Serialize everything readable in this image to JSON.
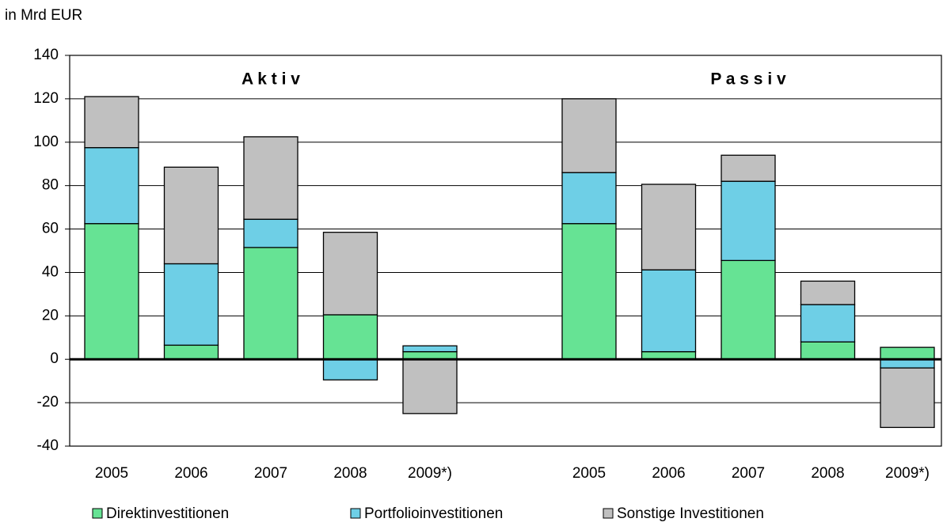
{
  "chart_data": {
    "type": "stacked_bar",
    "ylabel": "in Mrd EUR",
    "annotations": [
      "A k t i v",
      "P a s s i v"
    ],
    "categories": [
      "2005",
      "2006",
      "2007",
      "2008",
      "2009*)",
      "2005",
      "2006",
      "2007",
      "2008",
      "2009*)"
    ],
    "series": [
      {
        "name": "Direktinvestitionen",
        "color": "#66e394",
        "values": [
          62.5,
          6.5,
          51.5,
          20.5,
          3.5,
          62.5,
          3.5,
          45.5,
          8,
          5.5
        ]
      },
      {
        "name": "Portfolioinvestitionen",
        "color": "#6ecfe6",
        "values": [
          35,
          37.5,
          13,
          -9.5,
          2.7,
          23.5,
          37.7,
          36.5,
          17.2,
          -4
        ]
      },
      {
        "name": "Sonstige Investitionen",
        "color": "#c0c0c0",
        "values": [
          23.5,
          44.5,
          38,
          38,
          -25,
          34,
          39.4,
          12,
          10.8,
          -27.4
        ]
      }
    ],
    "ylim": [
      -40,
      140
    ],
    "yticks": [
      -40,
      -20,
      0,
      20,
      40,
      60,
      80,
      100,
      120,
      140
    ],
    "grid": true,
    "legend": "bottom"
  }
}
